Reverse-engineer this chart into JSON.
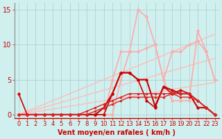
{
  "xlabel": "Vent moyen/en rafales ( km/h )",
  "bg_color": "#cff0ee",
  "grid_color": "#aacccc",
  "xlim": [
    -0.5,
    23.5
  ],
  "ylim": [
    -0.5,
    16
  ],
  "yticks": [
    0,
    5,
    10,
    15
  ],
  "xticks": [
    0,
    1,
    2,
    3,
    4,
    5,
    6,
    7,
    8,
    9,
    10,
    11,
    12,
    13,
    14,
    15,
    16,
    17,
    18,
    19,
    20,
    21,
    22,
    23
  ],
  "lines": [
    {
      "x": [
        0,
        1,
        2,
        3,
        4,
        5,
        6,
        7,
        8,
        9,
        10,
        11,
        12,
        13,
        14,
        15,
        16,
        17,
        18,
        19,
        20,
        21,
        22,
        23
      ],
      "y": [
        0,
        0.5,
        1.0,
        1.5,
        2.0,
        2.5,
        3.0,
        3.5,
        4.0,
        4.5,
        5.0,
        5.5,
        6.0,
        6.5,
        7.0,
        7.5,
        8.0,
        8.5,
        9.0,
        9.5,
        10.0,
        10.5,
        11.0,
        11.5
      ],
      "color": "#ffbbbb",
      "lw": 1.0,
      "marker": null
    },
    {
      "x": [
        0,
        1,
        2,
        3,
        4,
        5,
        6,
        7,
        8,
        9,
        10,
        11,
        12,
        13,
        14,
        15,
        16,
        17,
        18,
        19,
        20,
        21,
        22,
        23
      ],
      "y": [
        0,
        0.35,
        0.7,
        1.05,
        1.4,
        1.75,
        2.1,
        2.45,
        2.8,
        3.15,
        3.5,
        3.85,
        4.2,
        4.55,
        4.9,
        5.25,
        5.6,
        5.95,
        6.3,
        6.65,
        7.0,
        7.35,
        7.7,
        8.05
      ],
      "color": "#ffbbbb",
      "lw": 1.0,
      "marker": null
    },
    {
      "x": [
        0,
        1,
        2,
        3,
        4,
        5,
        6,
        7,
        8,
        9,
        10,
        11,
        12,
        13,
        14,
        15,
        16,
        17,
        18,
        19,
        20,
        21,
        22,
        23
      ],
      "y": [
        0,
        0.2,
        0.4,
        0.6,
        0.8,
        1.0,
        1.2,
        1.4,
        1.6,
        1.8,
        2.0,
        2.2,
        2.4,
        2.6,
        2.8,
        3.0,
        3.2,
        3.4,
        3.6,
        3.8,
        4.0,
        4.2,
        4.4,
        4.6
      ],
      "color": "#ffbbbb",
      "lw": 1.0,
      "marker": null
    },
    {
      "x": [
        0,
        1,
        2,
        3,
        4,
        5,
        6,
        7,
        8,
        9,
        10,
        11,
        12,
        13,
        14,
        15,
        16,
        17,
        18,
        19,
        20,
        21,
        22,
        23
      ],
      "y": [
        0,
        0,
        0,
        0,
        0,
        0,
        0,
        0,
        0,
        0,
        0,
        5,
        9,
        9,
        15,
        14,
        10,
        5,
        2,
        2,
        2,
        12,
        9,
        5
      ],
      "color": "#ffaaaa",
      "lw": 1.2,
      "marker": "o",
      "ms": 2.5
    },
    {
      "x": [
        0,
        1,
        2,
        3,
        4,
        5,
        6,
        7,
        8,
        9,
        10,
        11,
        12,
        13,
        14,
        15,
        16,
        17,
        18,
        19,
        20,
        21,
        22,
        23
      ],
      "y": [
        0,
        0,
        0,
        0,
        0,
        0,
        0,
        0,
        0,
        0,
        0,
        0,
        5,
        9,
        9,
        9.5,
        10,
        5,
        9,
        9,
        10,
        10.5,
        9,
        5
      ],
      "color": "#ffaaaa",
      "lw": 1.2,
      "marker": "o",
      "ms": 2.5
    },
    {
      "x": [
        0,
        1,
        2,
        3,
        4,
        5,
        6,
        7,
        8,
        9,
        10,
        11,
        12,
        13,
        14,
        15,
        16,
        17,
        18,
        19,
        20,
        21,
        22,
        23
      ],
      "y": [
        3,
        0,
        0,
        0,
        0,
        0,
        0,
        0,
        0,
        0,
        0,
        3,
        6,
        6,
        5,
        2,
        1,
        4,
        3,
        3.5,
        3,
        2,
        1,
        0
      ],
      "color": "#cc0000",
      "lw": 1.2,
      "marker": "o",
      "ms": 2.5
    },
    {
      "x": [
        0,
        1,
        2,
        3,
        4,
        5,
        6,
        7,
        8,
        9,
        10,
        11,
        12,
        13,
        14,
        15,
        16,
        17,
        18,
        19,
        20,
        21,
        22,
        23
      ],
      "y": [
        0,
        0,
        0,
        0,
        0,
        0,
        0,
        0,
        0,
        0,
        1,
        3,
        6,
        6,
        5,
        5,
        1.2,
        4,
        3.5,
        3,
        3,
        1,
        1,
        0
      ],
      "color": "#cc0000",
      "lw": 1.5,
      "marker": "o",
      "ms": 2.5
    },
    {
      "x": [
        0,
        1,
        2,
        3,
        4,
        5,
        6,
        7,
        8,
        9,
        10,
        11,
        12,
        13,
        14,
        15,
        16,
        17,
        18,
        19,
        20,
        21,
        22,
        23
      ],
      "y": [
        0,
        0,
        0,
        0,
        0,
        0,
        0,
        0,
        0.5,
        1,
        1.5,
        2,
        2.5,
        3,
        3,
        3,
        3,
        3,
        3,
        2.5,
        2.5,
        2,
        1,
        0
      ],
      "color": "#dd2222",
      "lw": 1.0,
      "marker": "o",
      "ms": 2.0
    },
    {
      "x": [
        0,
        1,
        2,
        3,
        4,
        5,
        6,
        7,
        8,
        9,
        10,
        11,
        12,
        13,
        14,
        15,
        16,
        17,
        18,
        19,
        20,
        21,
        22,
        23
      ],
      "y": [
        0,
        0,
        0,
        0,
        0,
        0,
        0,
        0,
        0,
        0.5,
        1,
        1.5,
        2,
        2.5,
        2.5,
        2.5,
        2.5,
        2.5,
        3,
        3,
        3,
        2,
        1,
        0
      ],
      "color": "#dd2222",
      "lw": 1.0,
      "marker": "o",
      "ms": 2.0
    }
  ],
  "xlabel_fontsize": 7,
  "tick_fontsize": 6,
  "tick_color": "#cc0000",
  "label_color": "#cc0000"
}
